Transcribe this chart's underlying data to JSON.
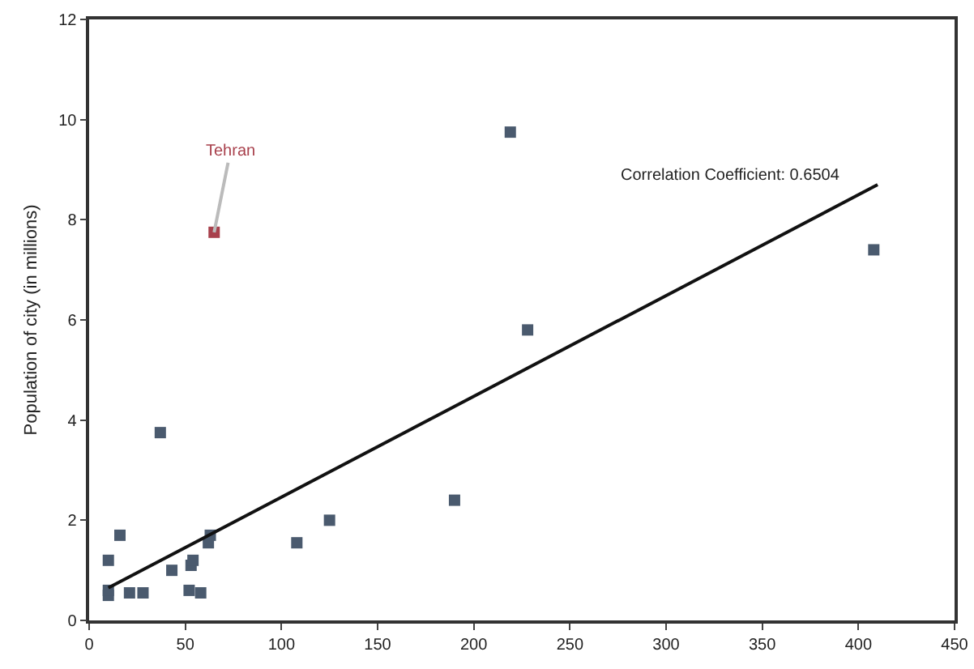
{
  "chart_data": {
    "type": "scatter",
    "ylabel": "Population of city (in millions)",
    "xlim": [
      0,
      450
    ],
    "ylim": [
      0,
      12
    ],
    "xticks": [
      0,
      50,
      100,
      150,
      200,
      250,
      300,
      350,
      400,
      450
    ],
    "yticks": [
      0,
      2,
      4,
      6,
      8,
      10,
      12
    ],
    "grid": false,
    "series": [
      {
        "marker": "square",
        "x": [
          10,
          16,
          10,
          10,
          21,
          28,
          43,
          37,
          53,
          54,
          52,
          58,
          62,
          63,
          65,
          108,
          125,
          190,
          219,
          228,
          408
        ],
        "values": [
          1.2,
          1.7,
          0.5,
          0.6,
          0.55,
          0.55,
          1.0,
          3.75,
          1.1,
          1.2,
          0.6,
          0.55,
          1.55,
          1.7,
          7.75,
          1.55,
          2.0,
          2.4,
          9.75,
          5.8,
          7.4
        ],
        "colors": [
          "#4a5a6e",
          "#4a5a6e",
          "#4a5a6e",
          "#4a5a6e",
          "#4a5a6e",
          "#4a5a6e",
          "#4a5a6e",
          "#4a5a6e",
          "#4a5a6e",
          "#4a5a6e",
          "#4a5a6e",
          "#4a5a6e",
          "#4a5a6e",
          "#4a5a6e",
          "#a8404c",
          "#4a5a6e",
          "#4a5a6e",
          "#4a5a6e",
          "#4a5a6e",
          "#4a5a6e",
          "#4a5a6e"
        ]
      },
      {
        "type": "line",
        "color": "#111111",
        "x": [
          10,
          410
        ],
        "values": [
          0.65,
          8.7
        ]
      }
    ],
    "annotations": [
      {
        "text": "Tehran",
        "x": 65,
        "y": 7.75
      },
      "Correlation Coefficient: 0.6504"
    ]
  }
}
